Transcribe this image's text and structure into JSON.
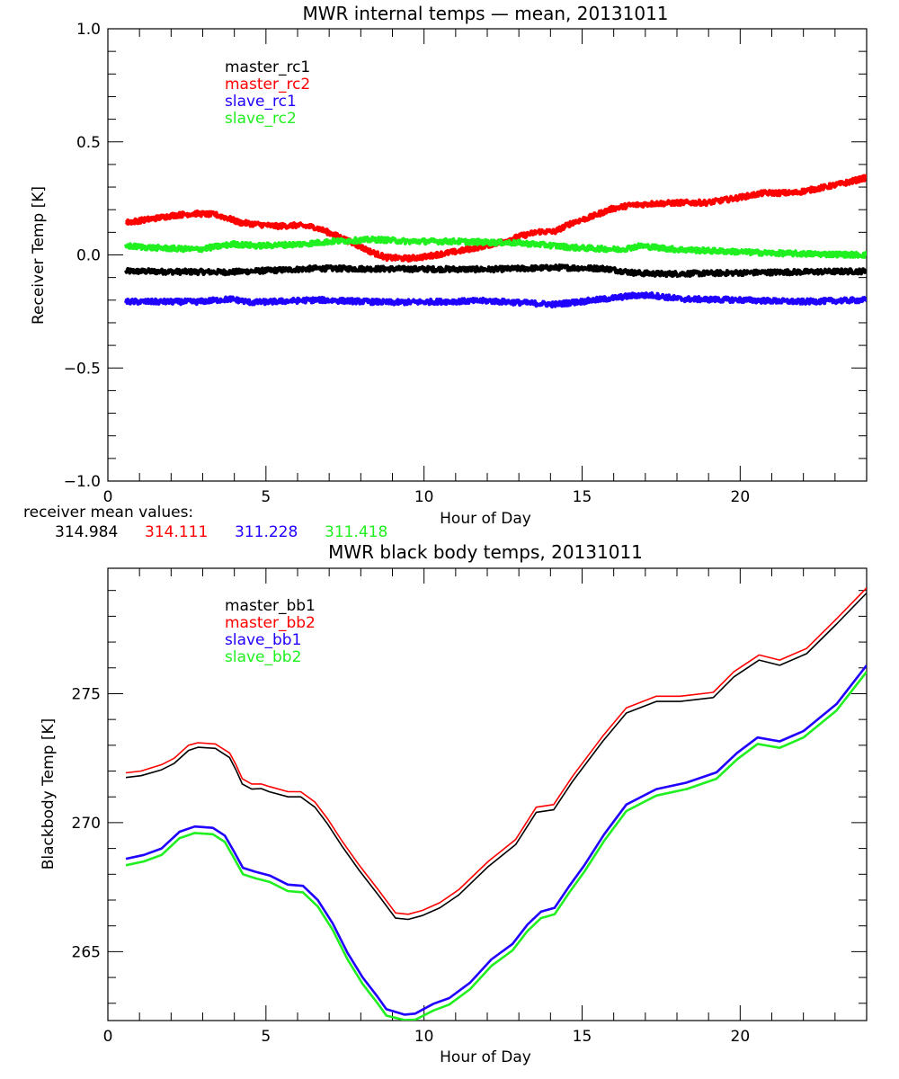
{
  "chart_data": [
    {
      "type": "line",
      "title": "MWR internal temps — mean, 20131011",
      "xlabel": "Hour of Day",
      "ylabel": "Receiver Temp [K]",
      "xlim": [
        0,
        24
      ],
      "ylim": [
        -1.0,
        1.0
      ],
      "xticks": [
        0,
        5,
        10,
        15,
        20
      ],
      "xtick_labels": [
        "0",
        "5",
        "10",
        "15",
        "20"
      ],
      "xminor_step": 1,
      "yticks": [
        -1.0,
        -0.5,
        0.0,
        0.5,
        1.0
      ],
      "ytick_labels": [
        "−1.0",
        "−0.5",
        "0.0",
        "0.5",
        "1.0"
      ],
      "yminor_step": 0.1,
      "grid": false,
      "legend_position": "top-left",
      "series": [
        {
          "name": "master_rc1",
          "color": "#000000",
          "noisy": true,
          "x": [
            0.57,
            2.0,
            3.8,
            5.3,
            6.6,
            9.0,
            12.0,
            14.3,
            15.7,
            16.7,
            17.6,
            19.5,
            21.4,
            24.0
          ],
          "y": [
            -0.072,
            -0.074,
            -0.076,
            -0.068,
            -0.06,
            -0.062,
            -0.064,
            -0.056,
            -0.06,
            -0.08,
            -0.084,
            -0.08,
            -0.076,
            -0.072
          ]
        },
        {
          "name": "master_rc2",
          "color": "#ff0000",
          "noisy": true,
          "x": [
            0.57,
            1.42,
            2.08,
            2.75,
            3.41,
            3.79,
            4.17,
            4.74,
            5.31,
            5.97,
            6.54,
            6.92,
            7.39,
            7.87,
            8.35,
            8.82,
            9.48,
            10.05,
            10.52,
            11.09,
            11.66,
            12.23,
            12.51,
            13.08,
            13.65,
            14.13,
            14.7,
            15.27,
            15.92,
            16.49,
            17.26,
            18.2,
            18.96,
            19.7,
            20.76,
            21.7,
            22.47,
            23.32,
            24.0
          ],
          "y": [
            0.143,
            0.16,
            0.175,
            0.183,
            0.178,
            0.163,
            0.143,
            0.135,
            0.127,
            0.131,
            0.123,
            0.103,
            0.076,
            0.044,
            0.012,
            -0.012,
            -0.016,
            -0.008,
            0.004,
            0.016,
            0.032,
            0.05,
            0.06,
            0.084,
            0.103,
            0.103,
            0.143,
            0.167,
            0.203,
            0.219,
            0.227,
            0.231,
            0.231,
            0.247,
            0.274,
            0.274,
            0.294,
            0.318,
            0.342
          ]
        },
        {
          "name": "slave_rc1",
          "color": "#2000ff",
          "noisy": true,
          "x": [
            0.57,
            2.84,
            3.89,
            4.55,
            6.63,
            9.0,
            12.0,
            14.13,
            15.72,
            16.69,
            17.26,
            18.11,
            20.0,
            21.9,
            24.0
          ],
          "y": [
            -0.207,
            -0.207,
            -0.195,
            -0.21,
            -0.199,
            -0.21,
            -0.203,
            -0.219,
            -0.195,
            -0.179,
            -0.179,
            -0.195,
            -0.199,
            -0.207,
            -0.199
          ]
        },
        {
          "name": "slave_rc2",
          "color": "#20f020",
          "noisy": true,
          "x": [
            0.57,
            1.4,
            2.84,
            3.98,
            4.74,
            6.17,
            7.11,
            8.53,
            9.48,
            10.9,
            12.0,
            13.08,
            13.85,
            14.79,
            16.2,
            16.86,
            18.0,
            19.53,
            20.95,
            22.38,
            24.0
          ],
          "y": [
            0.04,
            0.032,
            0.024,
            0.048,
            0.04,
            0.048,
            0.06,
            0.068,
            0.06,
            0.06,
            0.056,
            0.052,
            0.044,
            0.032,
            0.024,
            0.04,
            0.024,
            0.016,
            0.008,
            0.004,
            0.0
          ]
        }
      ],
      "annotation": {
        "label": "receiver mean values:",
        "values": [
          {
            "text": "314.984",
            "color": "#000000"
          },
          {
            "text": "314.111",
            "color": "#ff0000"
          },
          {
            "text": "311.228",
            "color": "#2000ff"
          },
          {
            "text": "311.418",
            "color": "#20f020"
          }
        ]
      }
    },
    {
      "type": "line",
      "title": "MWR black body temps, 20131011",
      "xlabel": "Hour of Day",
      "ylabel": "Blackbody Temp [K]",
      "xlim": [
        0,
        24
      ],
      "ylim": [
        262.33,
        279.86
      ],
      "xticks": [
        0,
        5,
        10,
        15,
        20
      ],
      "xtick_labels": [
        "0",
        "5",
        "10",
        "15",
        "20"
      ],
      "xminor_step": 1,
      "yticks": [
        265,
        270,
        275
      ],
      "ytick_labels": [
        "265",
        "270",
        "275"
      ],
      "yminor_step": 1,
      "grid": false,
      "legend_position": "top-left",
      "series": [
        {
          "name": "master_bb1",
          "color": "#000000",
          "x": [
            0.57,
            1.05,
            1.7,
            2.1,
            2.55,
            2.85,
            3.4,
            3.85,
            4.05,
            4.25,
            4.55,
            4.85,
            5.1,
            5.7,
            6.1,
            6.55,
            6.95,
            7.4,
            7.95,
            8.55,
            9.1,
            9.5,
            9.95,
            10.5,
            11.1,
            12.03,
            12.9,
            13.55,
            14.1,
            14.7,
            15.65,
            16.4,
            17.35,
            18.1,
            19.15,
            19.8,
            20.6,
            21.25,
            22.1,
            23.05,
            24.0
          ],
          "y": [
            271.75,
            271.82,
            272.05,
            272.3,
            272.8,
            272.92,
            272.88,
            272.52,
            272.05,
            271.5,
            271.3,
            271.32,
            271.2,
            271.0,
            271.0,
            270.6,
            269.95,
            269.1,
            268.15,
            267.2,
            266.3,
            266.25,
            266.4,
            266.7,
            267.2,
            268.3,
            269.15,
            270.4,
            270.5,
            271.6,
            273.15,
            274.25,
            274.7,
            274.7,
            274.85,
            275.65,
            276.3,
            276.1,
            276.55,
            277.7,
            278.9
          ]
        },
        {
          "name": "master_bb2",
          "color": "#ff0000",
          "x": [
            0.57,
            1.05,
            1.7,
            2.1,
            2.55,
            2.85,
            3.4,
            3.85,
            4.05,
            4.25,
            4.55,
            4.85,
            5.1,
            5.7,
            6.1,
            6.55,
            6.95,
            7.4,
            7.95,
            8.55,
            9.1,
            9.5,
            9.95,
            10.5,
            11.1,
            12.03,
            12.9,
            13.55,
            14.1,
            14.7,
            15.65,
            16.4,
            17.35,
            18.1,
            19.15,
            19.8,
            20.6,
            21.25,
            22.1,
            23.05,
            24.0
          ],
          "y": [
            271.93,
            272.0,
            272.25,
            272.5,
            273.0,
            273.1,
            273.05,
            272.7,
            272.25,
            271.7,
            271.5,
            271.5,
            271.4,
            271.2,
            271.2,
            270.8,
            270.15,
            269.3,
            268.35,
            267.4,
            266.5,
            266.45,
            266.6,
            266.9,
            267.4,
            268.5,
            269.35,
            270.6,
            270.7,
            271.8,
            273.35,
            274.45,
            274.9,
            274.9,
            275.05,
            275.85,
            276.5,
            276.3,
            276.75,
            277.9,
            279.1
          ]
        },
        {
          "name": "slave_bb1",
          "color": "#2000ff",
          "x": [
            0.57,
            1.14,
            1.7,
            2.27,
            2.75,
            3.32,
            3.7,
            3.98,
            4.27,
            4.65,
            5.12,
            5.69,
            6.17,
            6.64,
            7.11,
            7.58,
            8.06,
            8.53,
            8.81,
            9.38,
            9.72,
            10.3,
            10.8,
            11.46,
            12.13,
            12.8,
            13.27,
            13.7,
            14.13,
            14.6,
            15.07,
            15.7,
            16.4,
            17.35,
            18.3,
            19.25,
            19.9,
            20.55,
            21.25,
            22.0,
            23.05,
            24.0
          ],
          "y": [
            268.6,
            268.75,
            269.0,
            269.65,
            269.85,
            269.8,
            269.5,
            268.9,
            268.25,
            268.1,
            267.95,
            267.6,
            267.55,
            267.0,
            266.1,
            264.95,
            264.0,
            263.25,
            262.77,
            262.56,
            262.6,
            262.98,
            263.2,
            263.8,
            264.7,
            265.3,
            266.05,
            266.55,
            266.7,
            267.55,
            268.35,
            269.55,
            270.7,
            271.3,
            271.55,
            271.95,
            272.7,
            273.3,
            273.15,
            273.55,
            274.6,
            276.1
          ]
        },
        {
          "name": "slave_bb2",
          "color": "#20f020",
          "x": [
            0.57,
            1.14,
            1.7,
            2.27,
            2.75,
            3.32,
            3.7,
            3.98,
            4.27,
            4.65,
            5.12,
            5.69,
            6.17,
            6.64,
            7.11,
            7.58,
            8.06,
            8.53,
            8.81,
            9.38,
            9.72,
            10.3,
            10.8,
            11.46,
            12.13,
            12.8,
            13.27,
            13.7,
            14.13,
            14.6,
            15.07,
            15.7,
            16.4,
            17.35,
            18.3,
            19.25,
            19.9,
            20.55,
            21.25,
            22.0,
            23.05,
            24.0
          ],
          "y": [
            268.35,
            268.5,
            268.75,
            269.4,
            269.6,
            269.55,
            269.25,
            268.65,
            268.0,
            267.85,
            267.7,
            267.35,
            267.3,
            266.75,
            265.85,
            264.7,
            263.75,
            263.0,
            262.52,
            262.35,
            262.36,
            262.72,
            262.95,
            263.55,
            264.45,
            265.05,
            265.8,
            266.3,
            266.45,
            267.3,
            268.1,
            269.3,
            270.45,
            271.05,
            271.3,
            271.7,
            272.45,
            273.05,
            272.9,
            273.3,
            274.35,
            275.85
          ]
        }
      ]
    }
  ]
}
